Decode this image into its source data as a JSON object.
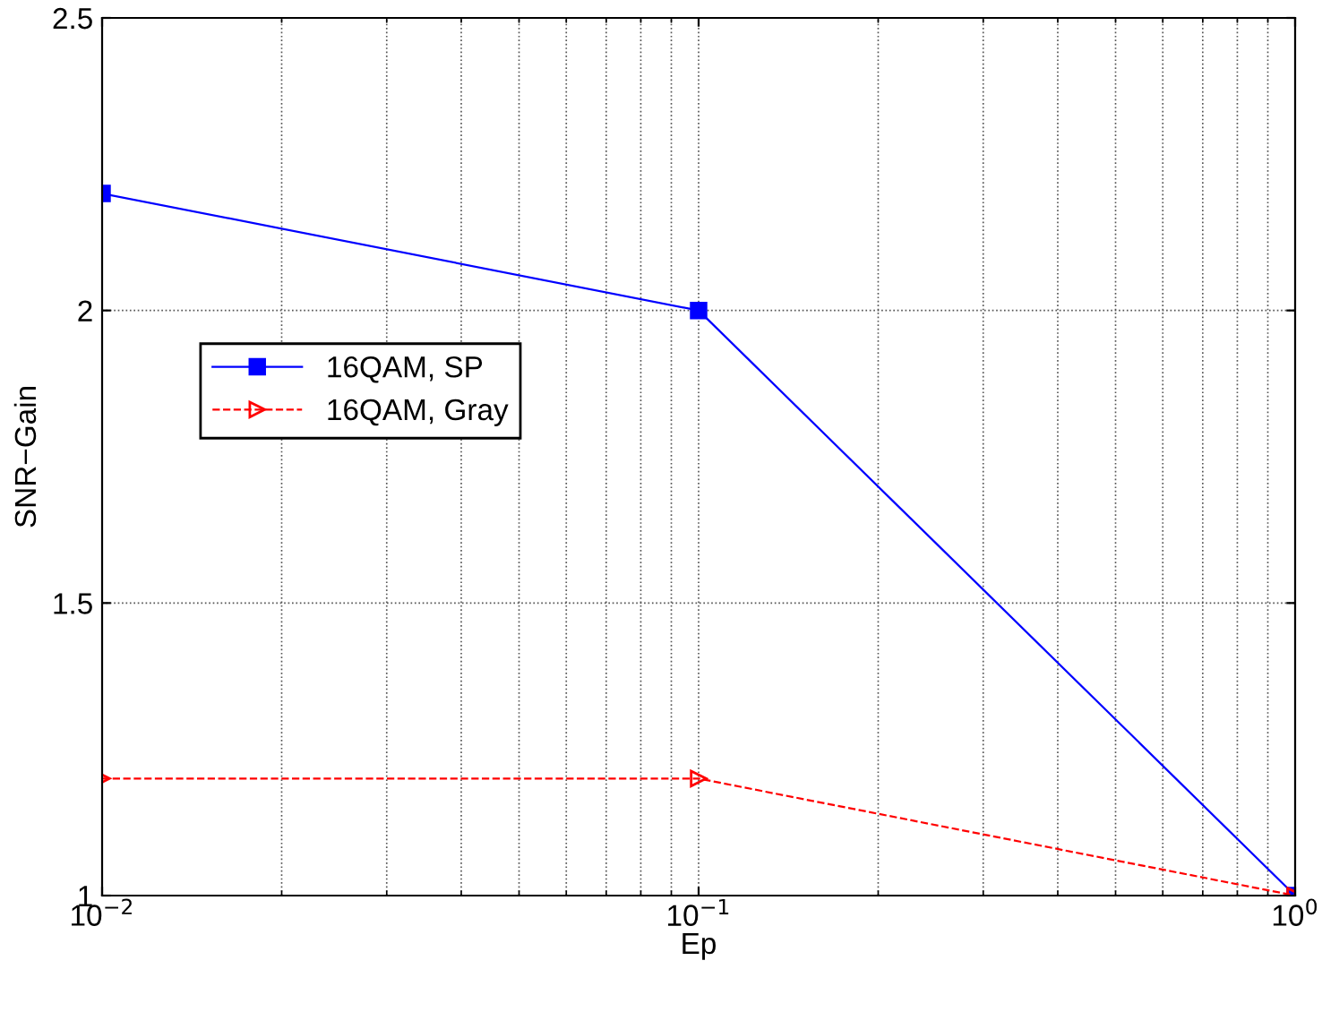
{
  "chart_data": {
    "type": "line",
    "xlabel": "Ep",
    "ylabel": "SNR−Gain",
    "log": "x",
    "x": [
      0.01,
      0.1,
      1
    ],
    "xlim": [
      0.01,
      1
    ],
    "xticks": [
      {
        "value": 0.01,
        "label": "10$^{−2}$"
      },
      {
        "value": 0.1,
        "label": "10$^{−1}$"
      },
      {
        "value": 1,
        "label": "10$^{0}$"
      }
    ],
    "ylim": [
      1,
      2.5
    ],
    "yticks": [
      1,
      1.5,
      2,
      2.5
    ],
    "grid": true,
    "legend": "left",
    "series": [
      {
        "name": "16QAM, SP",
        "color": "#0000ff",
        "values": [
          2.2,
          2.0,
          1.0
        ],
        "marker": "square",
        "line_style": "solid"
      },
      {
        "name": "16QAM, Gray",
        "color": "#ff0000",
        "values": [
          1.2,
          1.2,
          1.0
        ],
        "marker": "triangle",
        "line_style": "dashed"
      }
    ]
  }
}
